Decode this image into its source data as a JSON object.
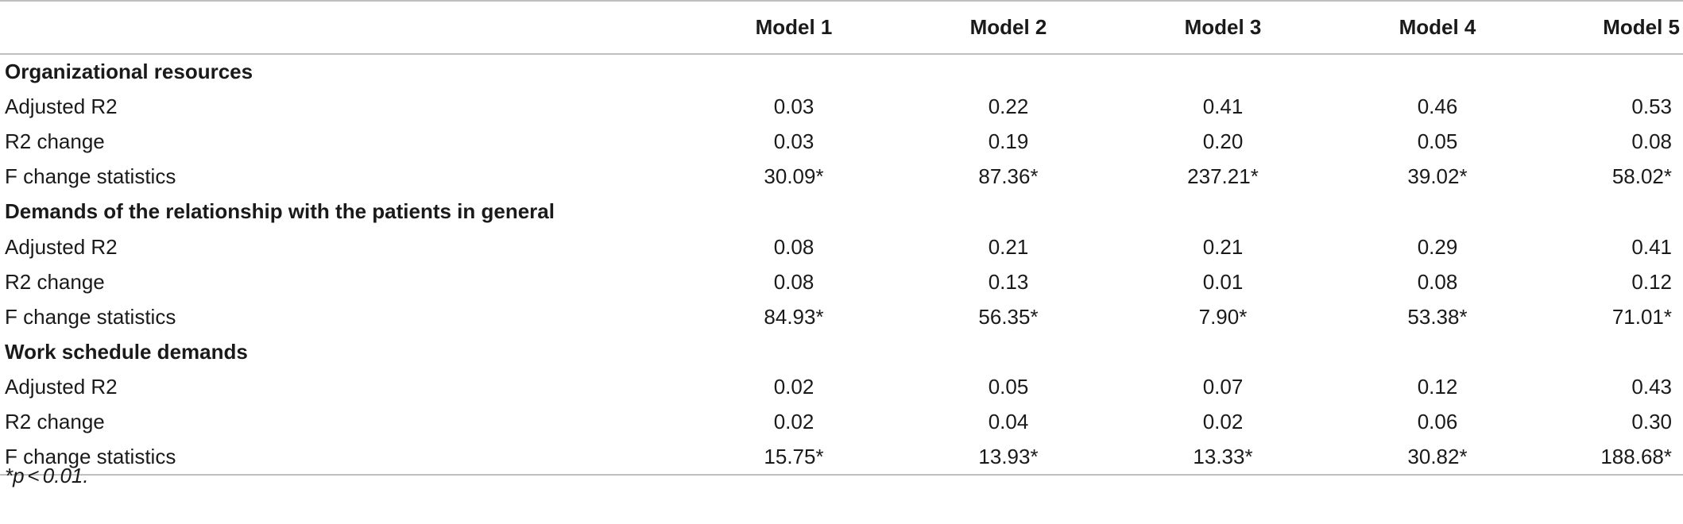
{
  "table": {
    "columns": [
      "",
      "Model 1",
      "Model 2",
      "Model 3",
      "Model 4",
      "Model 5"
    ],
    "sections": [
      {
        "title": "Organizational resources",
        "rows": [
          {
            "label": "Adjusted R2",
            "values": [
              "0.03",
              "0.22",
              "0.41",
              "0.46",
              "0.53"
            ]
          },
          {
            "label": "R2 change",
            "values": [
              "0.03",
              "0.19",
              "0.20",
              "0.05",
              "0.08"
            ]
          },
          {
            "label": "F change statistics",
            "values": [
              "30.09*",
              "87.36*",
              "237.21*",
              "39.02*",
              "58.02*"
            ]
          }
        ]
      },
      {
        "title": "Demands of the relationship with the patients in general",
        "rows": [
          {
            "label": "Adjusted R2",
            "values": [
              "0.08",
              "0.21",
              "0.21",
              "0.29",
              "0.41"
            ]
          },
          {
            "label": "R2 change",
            "values": [
              "0.08",
              "0.13",
              "0.01",
              "0.08",
              "0.12"
            ]
          },
          {
            "label": "F change statistics",
            "values": [
              "84.93*",
              "56.35*",
              "7.90*",
              "53.38*",
              "71.01*"
            ]
          }
        ]
      },
      {
        "title": "Work schedule demands",
        "rows": [
          {
            "label": "Adjusted R2",
            "values": [
              "0.02",
              "0.05",
              "0.07",
              "0.12",
              "0.43"
            ]
          },
          {
            "label": "R2 change",
            "values": [
              "0.02",
              "0.04",
              "0.02",
              "0.06",
              "0.30"
            ]
          },
          {
            "label": "F change statistics",
            "values": [
              "15.75*",
              "13.93*",
              "13.33*",
              "30.82*",
              "188.68*"
            ]
          }
        ]
      }
    ]
  },
  "footnote": {
    "marker": "*p",
    "operator": "<",
    "value": "0.01."
  }
}
